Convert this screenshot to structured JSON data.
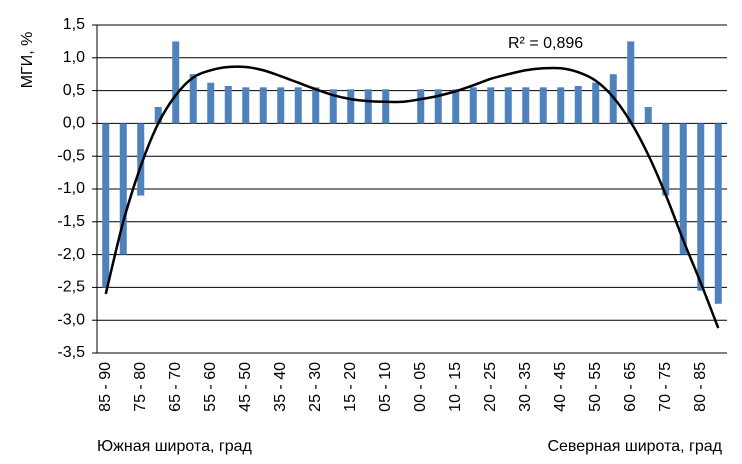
{
  "chart_data": {
    "type": "bar",
    "y_label": "МГИ, %",
    "x_label_left": "Южная широта, град",
    "x_label_right": "Северная широта, град",
    "annotation": "R² = 0,896",
    "color": "#4f81bd",
    "trend_color": "#000000",
    "grid": true,
    "categories": [
      "85 - 90",
      null,
      "75 - 80",
      null,
      "65 - 70",
      null,
      "55 - 60",
      null,
      "45 - 50",
      null,
      "35 - 40",
      null,
      "25 - 30",
      null,
      "15 - 20",
      null,
      "05 - 10",
      null,
      "00 - 05",
      null,
      "10 - 15",
      null,
      "20 - 25",
      null,
      "30 - 35",
      null,
      "40 - 45",
      null,
      "50 - 55",
      null,
      "60 - 65",
      null,
      "70 - 75",
      null,
      "80 - 85",
      null
    ],
    "values": [
      -2.5,
      -2.0,
      -1.1,
      0.25,
      1.25,
      0.75,
      0.62,
      0.57,
      0.55,
      0.55,
      0.55,
      0.55,
      0.55,
      0.52,
      0.52,
      0.52,
      0.52,
      null,
      0.52,
      0.52,
      0.52,
      0.55,
      0.55,
      0.55,
      0.55,
      0.55,
      0.55,
      0.57,
      0.62,
      0.75,
      1.25,
      0.25,
      -1.1,
      -2.0,
      -2.55,
      -2.75
    ],
    "trend": {
      "values": [
        -2.6,
        -1.5,
        -0.65,
        0,
        0.43,
        0.7,
        0.81,
        0.86,
        0.86,
        0.81,
        0.72,
        0.62,
        0.52,
        0.43,
        0.37,
        0.34,
        0.33,
        0.33,
        0.37,
        0.42,
        0.49,
        0.58,
        0.68,
        0.75,
        0.81,
        0.84,
        0.84,
        0.78,
        0.65,
        0.4,
        0.02,
        -0.48,
        -1.09,
        -1.78,
        -2.43,
        -3.12
      ]
    },
    "ylim": [
      -3.5,
      1.5
    ],
    "yticks": [
      {
        "value": -3.5,
        "label": "-3,5"
      },
      {
        "value": -3,
        "label": "-3,0"
      },
      {
        "value": -2.5,
        "label": "-2,5"
      },
      {
        "value": -2,
        "label": "-2,0"
      },
      {
        "value": -1.5,
        "label": "-1,5"
      },
      {
        "value": -1,
        "label": "-1,0"
      },
      {
        "value": -0.5,
        "label": "-0,5"
      },
      {
        "value": 0,
        "label": "0,0"
      },
      {
        "value": 0.5,
        "label": "0,5"
      },
      {
        "value": 1,
        "label": "1,0"
      },
      {
        "value": 1.5,
        "label": "1,5"
      }
    ]
  }
}
